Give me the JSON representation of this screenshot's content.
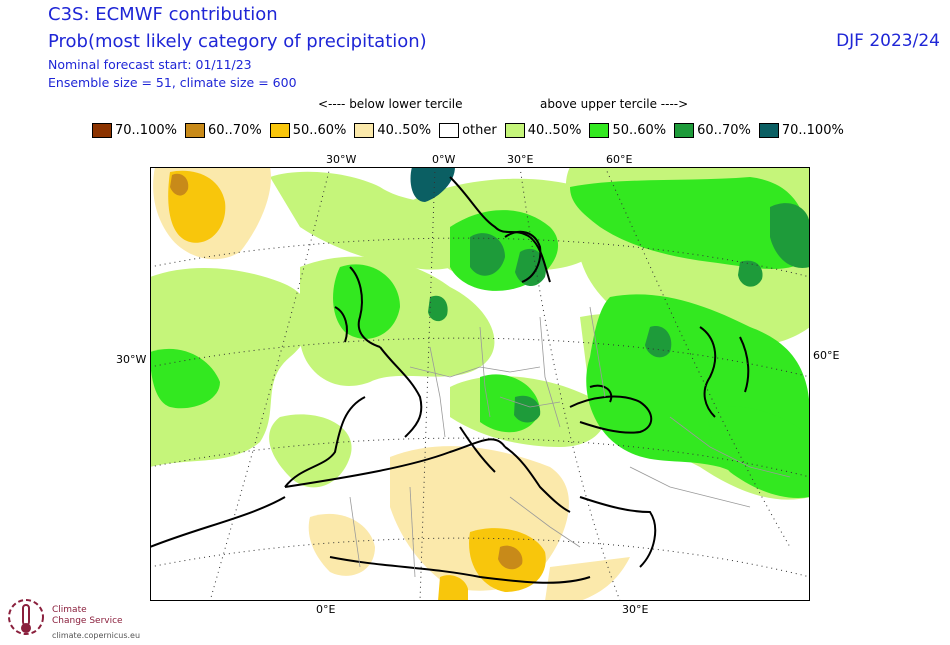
{
  "header": {
    "title": "C3S: ECMWF contribution",
    "subtitle": "Prob(most likely category of precipitation)",
    "forecast_start": "Nominal forecast start: 01/11/23",
    "ensemble": "Ensemble size = 51, climate size = 600",
    "season": "DJF 2023/24"
  },
  "legend": {
    "below_caption": "<---- below lower tercile",
    "above_caption": "above upper tercile ---->",
    "items": [
      {
        "label": "70..100%",
        "color": "#8b3300"
      },
      {
        "label": "60..70%",
        "color": "#c88a19"
      },
      {
        "label": "50..60%",
        "color": "#f8c60c"
      },
      {
        "label": "40..50%",
        "color": "#fbe9ab"
      },
      {
        "label": "other",
        "color": "#ffffff"
      },
      {
        "label": "40..50%",
        "color": "#c5f57a"
      },
      {
        "label": "50..60%",
        "color": "#33e820"
      },
      {
        "label": "60..70%",
        "color": "#1e9b3a"
      },
      {
        "label": "70..100%",
        "color": "#0b5f63"
      }
    ]
  },
  "axes": {
    "top": [
      "30°W",
      "0°W",
      "30°E",
      "60°E"
    ],
    "left": "30°W",
    "right": "60°E",
    "bottom": [
      "0°E",
      "30°E"
    ]
  },
  "logo": {
    "line1": "Climate",
    "line2": "Change Service",
    "url": "climate.copernicus.eu"
  }
}
